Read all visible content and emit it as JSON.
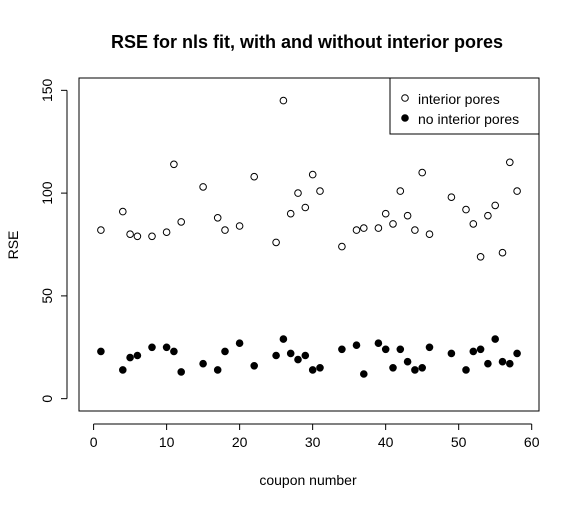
{
  "chart_data": {
    "type": "scatter",
    "title": "RSE for nls fit, with and without interior pores",
    "xlabel": "coupon number",
    "ylabel": "RSE",
    "xlim": [
      -2,
      61
    ],
    "ylim": [
      -6,
      156
    ],
    "xticks": [
      0,
      10,
      20,
      30,
      40,
      50,
      60
    ],
    "yticks": [
      0,
      50,
      100,
      150
    ],
    "grid": false,
    "legend_position": "top-right",
    "series": [
      {
        "name": "interior pores",
        "marker": "open-circle",
        "color": "#000000",
        "points": [
          [
            1,
            82
          ],
          [
            4,
            91
          ],
          [
            5,
            80
          ],
          [
            6,
            79
          ],
          [
            8,
            79
          ],
          [
            10,
            81
          ],
          [
            11,
            114
          ],
          [
            12,
            86
          ],
          [
            15,
            103
          ],
          [
            17,
            88
          ],
          [
            18,
            82
          ],
          [
            20,
            84
          ],
          [
            22,
            108
          ],
          [
            25,
            76
          ],
          [
            26,
            145
          ],
          [
            27,
            90
          ],
          [
            28,
            100
          ],
          [
            29,
            93
          ],
          [
            30,
            109
          ],
          [
            31,
            101
          ],
          [
            34,
            74
          ],
          [
            36,
            82
          ],
          [
            37,
            83
          ],
          [
            39,
            83
          ],
          [
            40,
            90
          ],
          [
            41,
            85
          ],
          [
            42,
            101
          ],
          [
            43,
            89
          ],
          [
            44,
            82
          ],
          [
            45,
            110
          ],
          [
            46,
            80
          ],
          [
            49,
            98
          ],
          [
            51,
            92
          ],
          [
            52,
            85
          ],
          [
            53,
            69
          ],
          [
            54,
            89
          ],
          [
            55,
            94
          ],
          [
            56,
            71
          ],
          [
            57,
            115
          ],
          [
            58,
            101
          ]
        ]
      },
      {
        "name": "no interior pores",
        "marker": "filled-circle",
        "color": "#000000",
        "points": [
          [
            1,
            23
          ],
          [
            4,
            14
          ],
          [
            5,
            20
          ],
          [
            6,
            21
          ],
          [
            8,
            25
          ],
          [
            10,
            25
          ],
          [
            11,
            23
          ],
          [
            12,
            13
          ],
          [
            15,
            17
          ],
          [
            17,
            14
          ],
          [
            18,
            23
          ],
          [
            20,
            27
          ],
          [
            22,
            16
          ],
          [
            25,
            21
          ],
          [
            26,
            29
          ],
          [
            27,
            22
          ],
          [
            28,
            19
          ],
          [
            29,
            21
          ],
          [
            30,
            14
          ],
          [
            31,
            15
          ],
          [
            34,
            24
          ],
          [
            36,
            26
          ],
          [
            37,
            12
          ],
          [
            39,
            27
          ],
          [
            40,
            24
          ],
          [
            41,
            15
          ],
          [
            42,
            24
          ],
          [
            43,
            18
          ],
          [
            44,
            14
          ],
          [
            45,
            15
          ],
          [
            46,
            25
          ],
          [
            49,
            22
          ],
          [
            51,
            14
          ],
          [
            52,
            23
          ],
          [
            53,
            24
          ],
          [
            54,
            17
          ],
          [
            55,
            29
          ],
          [
            56,
            18
          ],
          [
            57,
            17
          ],
          [
            58,
            22
          ]
        ]
      }
    ]
  }
}
